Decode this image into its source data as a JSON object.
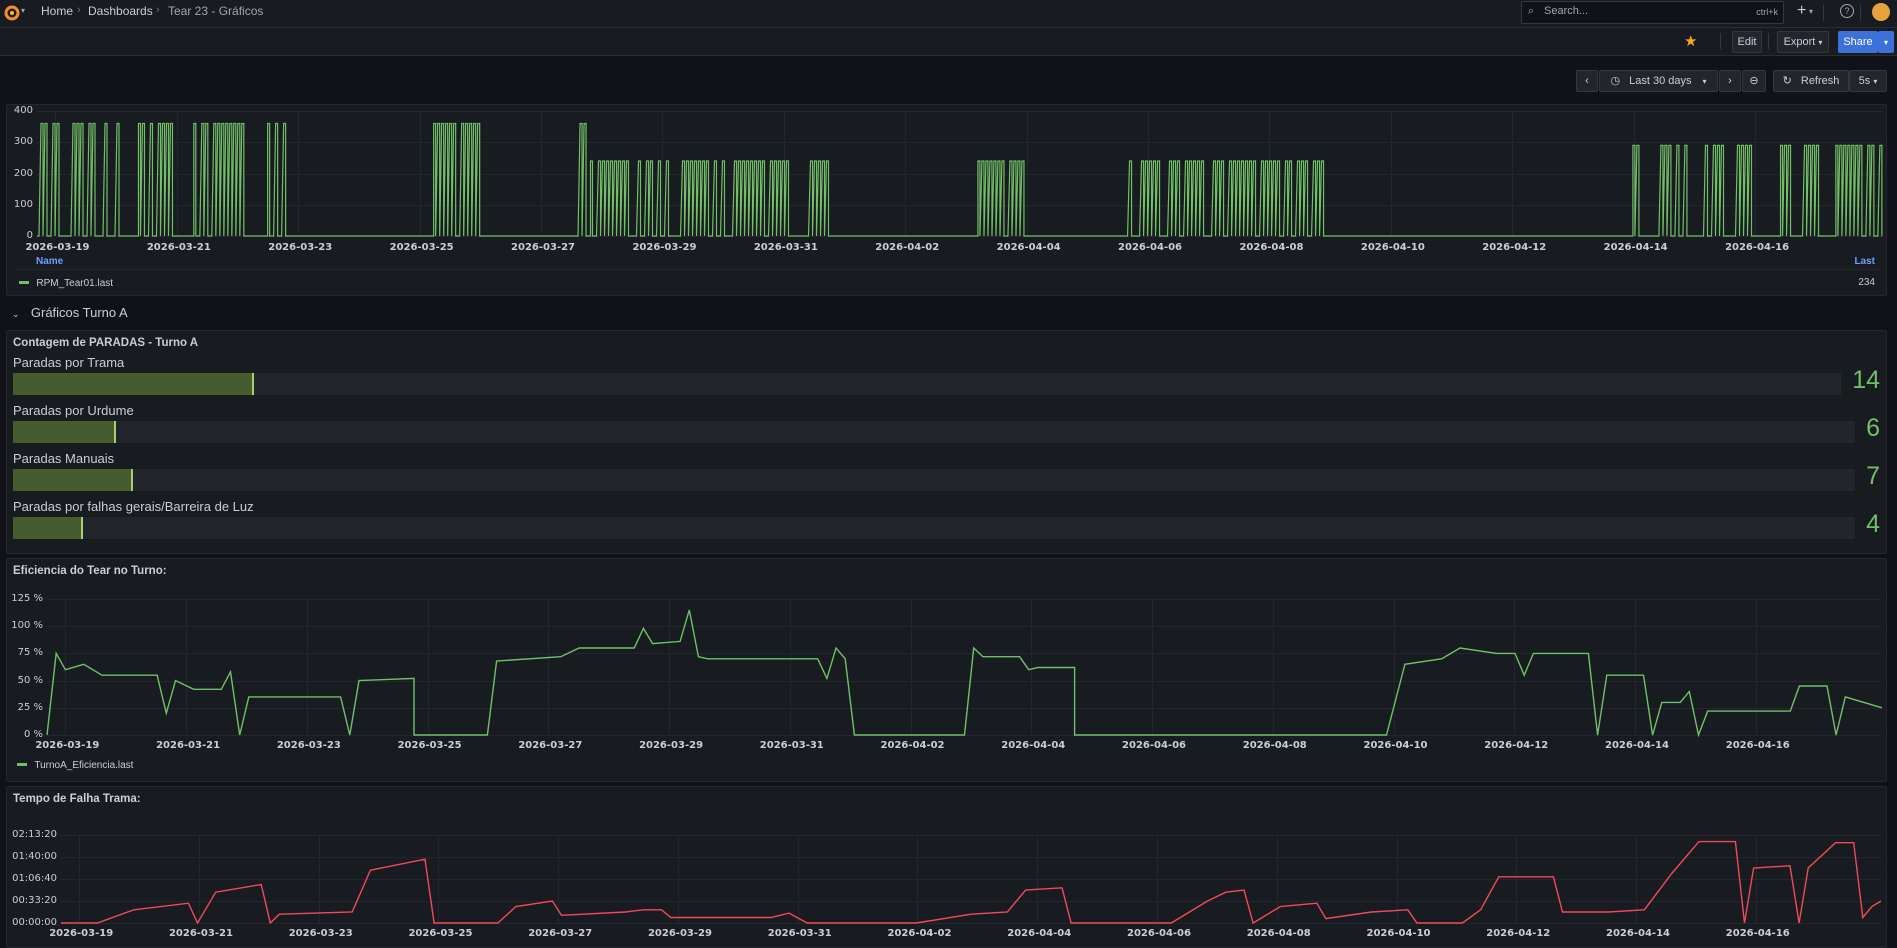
{
  "nav": {
    "breadcrumb": [
      "Home",
      "Dashboards",
      "Tear 23 - Gráficos"
    ],
    "search_placeholder": "Search...",
    "search_shortcut": "ctrl+k",
    "plus_label": "+",
    "help_icon": "help-icon"
  },
  "toolbar": {
    "edit_label": "Edit",
    "export_label": "Export",
    "share_label": "Share",
    "time_range_label": "Last 30 days",
    "refresh_label": "Refresh",
    "refresh_interval": "5s"
  },
  "x_dates": [
    "2026-03-19",
    "2026-03-21",
    "2026-03-23",
    "2026-03-25",
    "2026-03-27",
    "2026-03-29",
    "2026-03-31",
    "2026-04-02",
    "2026-04-04",
    "2026-04-06",
    "2026-04-08",
    "2026-04-10",
    "2026-04-12",
    "2026-04-14",
    "2026-04-16"
  ],
  "rpm_panel": {
    "y_ticks": [
      "400",
      "300",
      "200",
      "100",
      "0"
    ],
    "legend_header_name": "Name",
    "legend_header_last": "Last",
    "series_name": "RPM_Tear01.last",
    "series_last": "234",
    "color": "#73bf69"
  },
  "section": {
    "title": "Gráficos Turno A"
  },
  "bar_panel": {
    "title": "Contagem de PARADAS - Turno A",
    "max": 100,
    "bars": [
      {
        "label": "Paradas por Trama",
        "value": "14",
        "fraction": 0.13
      },
      {
        "label": "Paradas por Urdume",
        "value": "6",
        "fraction": 0.055
      },
      {
        "label": "Paradas Manuais",
        "value": "7",
        "fraction": 0.064
      },
      {
        "label": "Paradas por falhas gerais/Barreira de Luz",
        "value": "4",
        "fraction": 0.037
      }
    ]
  },
  "eff_panel": {
    "title": "Eficiencia do Tear no Turno:",
    "y_ticks": [
      "125 %",
      "100 %",
      "75 %",
      "50 %",
      "25 %",
      "0 %"
    ],
    "series_name": "TurnoA_Eficiencia.last",
    "color": "#73bf69"
  },
  "fail_panel": {
    "title": "Tempo de Falha Trama:",
    "y_ticks": [
      "02:13:20",
      "01:40:00",
      "01:06:40",
      "00:33:20",
      "00:00:00"
    ],
    "color": "#f2495c"
  },
  "chart_data": [
    {
      "type": "line",
      "ylim": [
        0,
        400
      ],
      "series": [
        {
          "name": "RPM_Tear01.last",
          "values": []
        }
      ],
      "activity_blocks": [
        {
          "start": 0.0,
          "end": 0.045,
          "level": 360
        },
        {
          "start": 0.055,
          "end": 0.075,
          "level": 360
        },
        {
          "start": 0.085,
          "end": 0.115,
          "level": 360
        },
        {
          "start": 0.125,
          "end": 0.135,
          "level": 360
        },
        {
          "start": 0.215,
          "end": 0.24,
          "level": 360
        },
        {
          "start": 0.29,
          "end": 0.3,
          "level": 360
        },
        {
          "start": 0.3,
          "end": 0.43,
          "level": 240
        },
        {
          "start": 0.51,
          "end": 0.535,
          "level": 240
        },
        {
          "start": 0.59,
          "end": 0.7,
          "level": 240
        },
        {
          "start": 0.865,
          "end": 0.895,
          "level": 290
        },
        {
          "start": 0.9,
          "end": 0.93,
          "level": 290
        },
        {
          "start": 0.945,
          "end": 0.965,
          "level": 290
        },
        {
          "start": 0.975,
          "end": 1.0,
          "level": 290
        }
      ]
    },
    {
      "type": "line",
      "ylim": [
        0,
        125
      ],
      "series": [
        {
          "name": "TurnoA_Eficiencia.last",
          "points": [
            [
              0.0,
              0
            ],
            [
              0.005,
              75
            ],
            [
              0.01,
              60
            ],
            [
              0.02,
              65
            ],
            [
              0.03,
              55
            ],
            [
              0.06,
              55
            ],
            [
              0.065,
              20
            ],
            [
              0.07,
              50
            ],
            [
              0.08,
              42
            ],
            [
              0.095,
              42
            ],
            [
              0.1,
              58
            ],
            [
              0.105,
              0
            ],
            [
              0.11,
              35
            ],
            [
              0.16,
              35
            ],
            [
              0.165,
              0
            ],
            [
              0.17,
              50
            ],
            [
              0.2,
              52
            ],
            [
              0.2,
              0
            ],
            [
              0.24,
              0
            ],
            [
              0.245,
              68
            ],
            [
              0.28,
              72
            ],
            [
              0.29,
              80
            ],
            [
              0.32,
              80
            ],
            [
              0.325,
              98
            ],
            [
              0.33,
              84
            ],
            [
              0.345,
              86
            ],
            [
              0.35,
              115
            ],
            [
              0.355,
              72
            ],
            [
              0.36,
              70
            ],
            [
              0.42,
              70
            ],
            [
              0.425,
              52
            ],
            [
              0.43,
              80
            ],
            [
              0.435,
              70
            ],
            [
              0.44,
              0
            ],
            [
              0.5,
              0
            ],
            [
              0.505,
              80
            ],
            [
              0.51,
              72
            ],
            [
              0.53,
              72
            ],
            [
              0.535,
              60
            ],
            [
              0.54,
              62
            ],
            [
              0.56,
              62
            ],
            [
              0.56,
              0
            ],
            [
              0.73,
              0
            ],
            [
              0.74,
              65
            ],
            [
              0.76,
              70
            ],
            [
              0.77,
              80
            ],
            [
              0.79,
              75
            ],
            [
              0.8,
              75
            ],
            [
              0.805,
              55
            ],
            [
              0.81,
              75
            ],
            [
              0.84,
              75
            ],
            [
              0.845,
              0
            ],
            [
              0.85,
              55
            ],
            [
              0.87,
              55
            ],
            [
              0.875,
              0
            ],
            [
              0.88,
              30
            ],
            [
              0.89,
              30
            ],
            [
              0.895,
              40
            ],
            [
              0.9,
              0
            ],
            [
              0.905,
              22
            ],
            [
              0.95,
              22
            ],
            [
              0.955,
              45
            ],
            [
              0.97,
              45
            ],
            [
              0.975,
              0
            ],
            [
              0.98,
              35
            ],
            [
              1.0,
              25
            ]
          ]
        }
      ]
    },
    {
      "type": "line",
      "ylim": [
        0,
        8000
      ],
      "series": [
        {
          "name": "",
          "points": [
            [
              0.0,
              0
            ],
            [
              0.02,
              0
            ],
            [
              0.04,
              1200
            ],
            [
              0.07,
              1800
            ],
            [
              0.075,
              0
            ],
            [
              0.085,
              2800
            ],
            [
              0.11,
              3500
            ],
            [
              0.115,
              0
            ],
            [
              0.12,
              800
            ],
            [
              0.16,
              1000
            ],
            [
              0.17,
              4800
            ],
            [
              0.2,
              5800
            ],
            [
              0.205,
              0
            ],
            [
              0.24,
              0
            ],
            [
              0.25,
              1500
            ],
            [
              0.27,
              2000
            ],
            [
              0.275,
              700
            ],
            [
              0.31,
              1000
            ],
            [
              0.32,
              1200
            ],
            [
              0.33,
              1200
            ],
            [
              0.335,
              500
            ],
            [
              0.39,
              500
            ],
            [
              0.4,
              900
            ],
            [
              0.41,
              0
            ],
            [
              0.47,
              0
            ],
            [
              0.5,
              800
            ],
            [
              0.52,
              1000
            ],
            [
              0.53,
              3000
            ],
            [
              0.55,
              3200
            ],
            [
              0.555,
              0
            ],
            [
              0.61,
              0
            ],
            [
              0.63,
              2000
            ],
            [
              0.64,
              2800
            ],
            [
              0.65,
              3000
            ],
            [
              0.655,
              0
            ],
            [
              0.67,
              1500
            ],
            [
              0.69,
              1800
            ],
            [
              0.695,
              400
            ],
            [
              0.72,
              1000
            ],
            [
              0.74,
              1200
            ],
            [
              0.745,
              0
            ],
            [
              0.77,
              0
            ],
            [
              0.78,
              1200
            ],
            [
              0.79,
              4200
            ],
            [
              0.82,
              4200
            ],
            [
              0.825,
              1000
            ],
            [
              0.85,
              1000
            ],
            [
              0.87,
              1200
            ],
            [
              0.885,
              4500
            ],
            [
              0.9,
              7400
            ],
            [
              0.92,
              7400
            ],
            [
              0.925,
              0
            ],
            [
              0.93,
              5000
            ],
            [
              0.95,
              5200
            ],
            [
              0.955,
              0
            ],
            [
              0.96,
              5000
            ],
            [
              0.975,
              7300
            ],
            [
              0.985,
              7300
            ],
            [
              0.99,
              500
            ],
            [
              0.995,
              1500
            ],
            [
              1.0,
              2000
            ]
          ]
        }
      ]
    }
  ]
}
